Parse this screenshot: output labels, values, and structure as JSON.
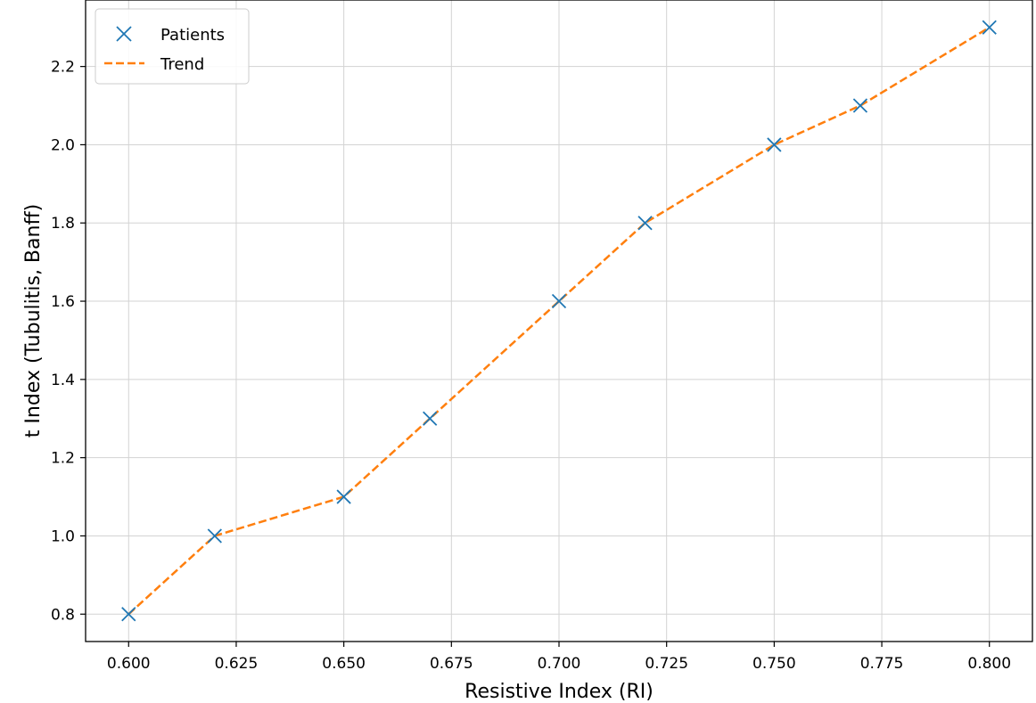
{
  "chart_data": {
    "type": "line",
    "title": "",
    "xlabel": "Resistive Index (RI)",
    "ylabel": "t Index (Tubulitis, Banff)",
    "x": [
      0.6,
      0.62,
      0.65,
      0.67,
      0.7,
      0.72,
      0.75,
      0.77,
      0.8
    ],
    "series": [
      {
        "name": "Patients",
        "style": "markers",
        "marker": "x",
        "color": "#1f77b4",
        "values": [
          0.8,
          1.0,
          1.1,
          1.3,
          1.6,
          1.8,
          2.0,
          2.1,
          2.3
        ]
      },
      {
        "name": "Trend",
        "style": "dashed-line",
        "color": "#ff7f0e",
        "values": [
          0.8,
          1.0,
          1.1,
          1.3,
          1.6,
          1.8,
          2.0,
          2.1,
          2.3
        ]
      }
    ],
    "xlim": [
      0.59,
      0.81
    ],
    "ylim": [
      0.73,
      2.37
    ],
    "xticks": [
      "0.600",
      "0.625",
      "0.650",
      "0.675",
      "0.700",
      "0.725",
      "0.750",
      "0.775",
      "0.800"
    ],
    "yticks": [
      "0.8",
      "1.0",
      "1.2",
      "1.4",
      "1.6",
      "1.8",
      "2.0",
      "2.2"
    ],
    "grid": true,
    "legend_position": "top-left"
  }
}
